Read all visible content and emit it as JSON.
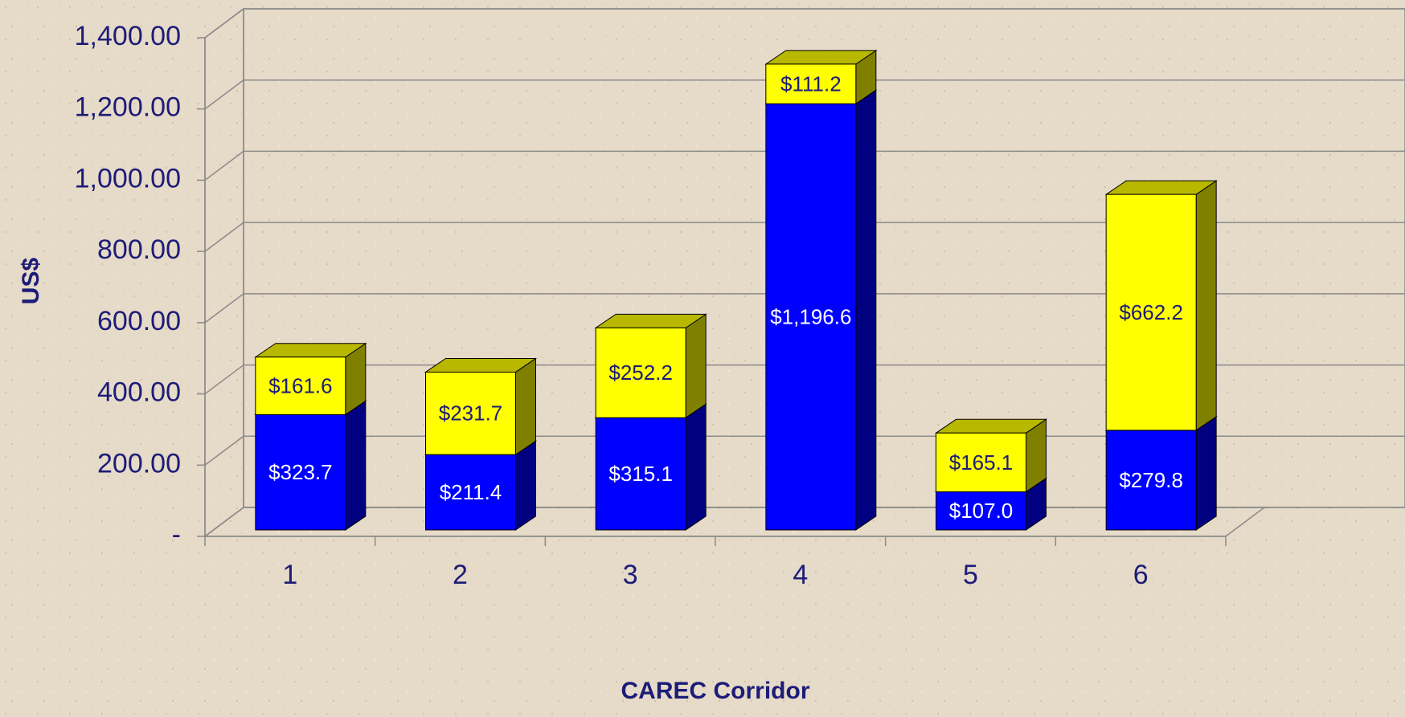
{
  "chart_data": {
    "type": "bar",
    "stacked": true,
    "x_label": "CAREC Corridor",
    "y_label": "US$",
    "categories": [
      "1",
      "2",
      "3",
      "4",
      "5",
      "6"
    ],
    "series": [
      {
        "color": "#0000ff",
        "values": [
          323.7,
          211.4,
          315.1,
          1196.6,
          107.0,
          279.8
        ],
        "value_labels": [
          "$323.7",
          "$211.4",
          "$315.1",
          "$1,196.6",
          "$107.0",
          "$279.8"
        ]
      },
      {
        "color": "#ffff00",
        "values": [
          161.6,
          231.7,
          252.2,
          111.2,
          165.1,
          662.2
        ],
        "value_labels": [
          "$161.6",
          "$231.7",
          "$252.2",
          "$111.2",
          "$165.1",
          "$662.2"
        ]
      }
    ],
    "ylim": [
      0,
      1400
    ],
    "yticks": [
      {
        "value": 0,
        "label": "-"
      },
      {
        "value": 200,
        "label": "200.00"
      },
      {
        "value": 400,
        "label": "400.00"
      },
      {
        "value": 600,
        "label": "600.00"
      },
      {
        "value": 800,
        "label": "800.00"
      },
      {
        "value": 1000,
        "label": "1,000.00"
      },
      {
        "value": 1200,
        "label": "1,200.00"
      },
      {
        "value": 1400,
        "label": "1,400.00"
      }
    ],
    "grid": true
  }
}
